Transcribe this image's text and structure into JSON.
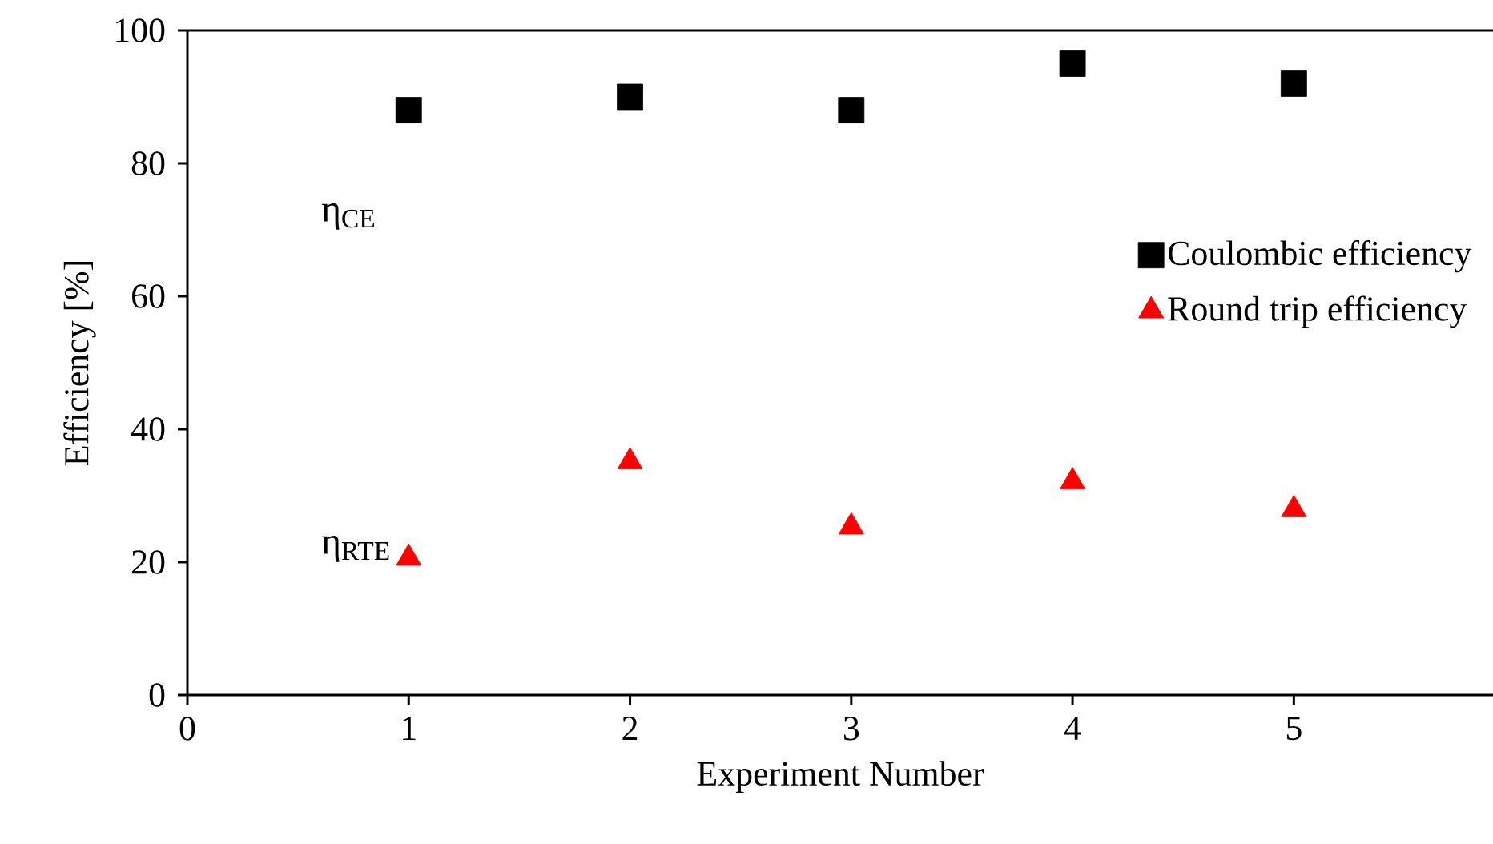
{
  "chart_data": {
    "type": "scatter",
    "xlabel": "Experiment Number",
    "ylabel": "Efficiency [%]",
    "x": [
      1,
      2,
      3,
      4,
      5
    ],
    "series": [
      {
        "name": "Coulombic efficiency",
        "color": "#000000",
        "marker": "square",
        "values": [
          88,
          90,
          88,
          95,
          92
        ]
      },
      {
        "name": "Round trip efficiency",
        "color": "#ff0000",
        "marker": "triangle",
        "values": [
          20.6,
          35.1,
          25.3,
          32.1,
          27.9
        ]
      }
    ],
    "annotations": [
      "η$_{CE}$",
      "η$_{RTE}$"
    ],
    "xlim": [
      0,
      5.9
    ],
    "xticks": [
      0,
      1,
      2,
      3,
      4,
      5
    ],
    "ylim": [
      0,
      100
    ],
    "yticks": [
      0,
      20,
      40,
      60,
      80,
      100
    ],
    "grid": false,
    "legend": "right"
  }
}
